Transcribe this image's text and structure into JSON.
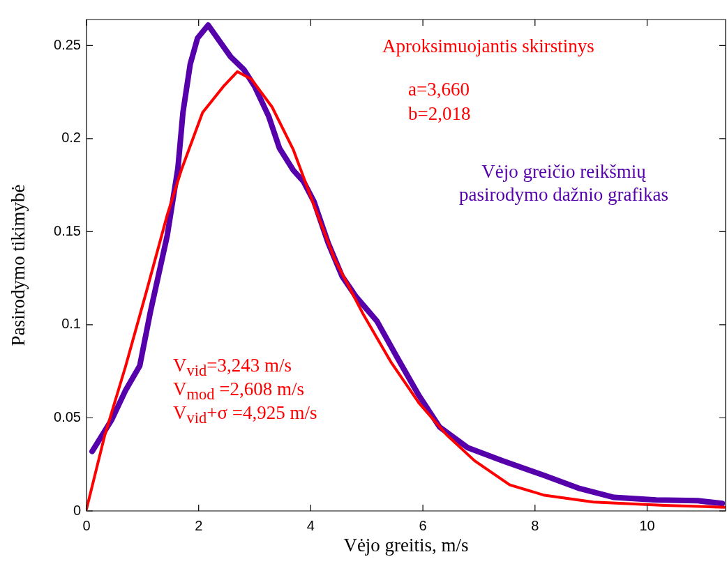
{
  "chart_data": {
    "type": "line",
    "xlabel": "Vėjo greitis, m/s",
    "ylabel": "Pasirodymo tikimybė",
    "xlim": [
      0,
      11.4
    ],
    "xticks": [
      0,
      2,
      4,
      6,
      8,
      10
    ],
    "ylim": [
      0,
      0.264
    ],
    "yticks": [
      0,
      0.05,
      0.1,
      0.15,
      0.2,
      0.25
    ],
    "grid": false,
    "marker": "none",
    "line_style": "solid",
    "series": [
      {
        "name": "Vėjo greičio reikšmių pasirodymo dažnio grafikas",
        "color": "#5500aa",
        "x": [
          0.1,
          0.45,
          0.7,
          0.95,
          1.14,
          1.44,
          1.63,
          1.72,
          1.85,
          1.98,
          2.17,
          2.57,
          2.81,
          3.0,
          3.25,
          3.44,
          3.69,
          3.87,
          4.06,
          4.31,
          4.56,
          4.81,
          5.18,
          5.55,
          5.93,
          6.3,
          6.8,
          7.42,
          8.17,
          8.8,
          9.41,
          10.16,
          10.9,
          11.34
        ],
        "values": [
          0.032,
          0.049,
          0.065,
          0.078,
          0.107,
          0.148,
          0.184,
          0.214,
          0.24,
          0.254,
          0.261,
          0.244,
          0.237,
          0.228,
          0.212,
          0.195,
          0.183,
          0.177,
          0.166,
          0.144,
          0.126,
          0.115,
          0.102,
          0.082,
          0.062,
          0.045,
          0.034,
          0.027,
          0.019,
          0.012,
          0.0073,
          0.0059,
          0.0055,
          0.004
        ]
      },
      {
        "name": "Aproksimuojantis skirstinys",
        "color": "#ff0000",
        "x": [
          0,
          0.32,
          0.7,
          1.07,
          1.44,
          1.69,
          2.07,
          2.44,
          2.69,
          2.94,
          3.31,
          3.69,
          4.06,
          4.43,
          4.93,
          5.43,
          5.93,
          6.42,
          6.92,
          7.55,
          8.17,
          9.04,
          10.3,
          11.38
        ],
        "values": [
          0.001,
          0.04,
          0.078,
          0.118,
          0.159,
          0.183,
          0.214,
          0.228,
          0.236,
          0.232,
          0.217,
          0.194,
          0.164,
          0.135,
          0.106,
          0.08,
          0.058,
          0.041,
          0.027,
          0.014,
          0.0084,
          0.0048,
          0.003,
          0.002
        ]
      }
    ],
    "annotations": [
      "a=3,660",
      "b=2,018",
      "V$_{vid}$=3,243 m/s",
      "V$_{mod}$ =2,608 m/s",
      "V$_{vid}$+σ =4,925 m/s"
    ]
  }
}
